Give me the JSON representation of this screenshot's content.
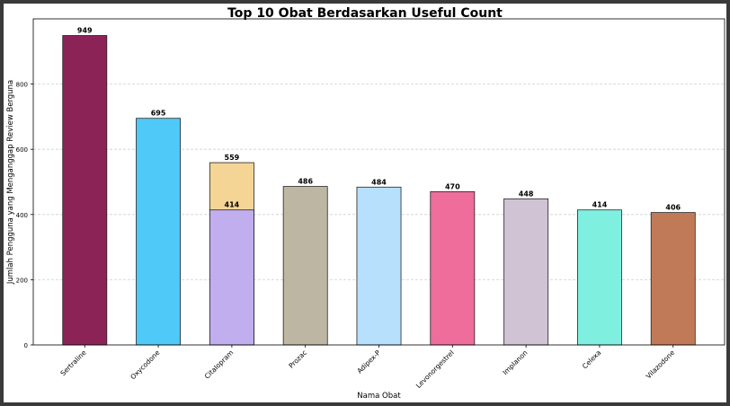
{
  "chart_data": {
    "type": "bar",
    "title": "Top 10 Obat Berdasarkan Useful Count",
    "xlabel": "Nama Obat",
    "ylabel": "Jumlah Pengguna yang Menganggap Review Berguna",
    "ylim": [
      0,
      1000
    ],
    "yticks": [
      0,
      200,
      400,
      600,
      800
    ],
    "grid": "horizontal dashed",
    "categories": [
      "Sertraline",
      "Oxycodone",
      "Citalopram",
      "Prozac",
      "Adipex-P",
      "Levonorgestrel",
      "Implanon",
      "Celexa",
      "Vilazodone"
    ],
    "bars": [
      {
        "category": "Sertraline",
        "value": 949,
        "color": "#8b2357"
      },
      {
        "category": "Oxycodone",
        "value": 695,
        "color": "#4fc9f8"
      },
      {
        "category": "Citalopram",
        "value": 559,
        "color": "#f5d596"
      },
      {
        "category": "Citalopram",
        "value": 414,
        "color": "#c1aeef"
      },
      {
        "category": "Prozac",
        "value": 486,
        "color": "#bdb6a2"
      },
      {
        "category": "Adipex-P",
        "value": 484,
        "color": "#b6e0fb"
      },
      {
        "category": "Levonorgestrel",
        "value": 470,
        "color": "#ee6d9a"
      },
      {
        "category": "Implanon",
        "value": 448,
        "color": "#d0c4d4"
      },
      {
        "category": "Celexa",
        "value": 414,
        "color": "#7ff0e0"
      },
      {
        "category": "Vilazodone",
        "value": 406,
        "color": "#c17a57"
      }
    ]
  }
}
